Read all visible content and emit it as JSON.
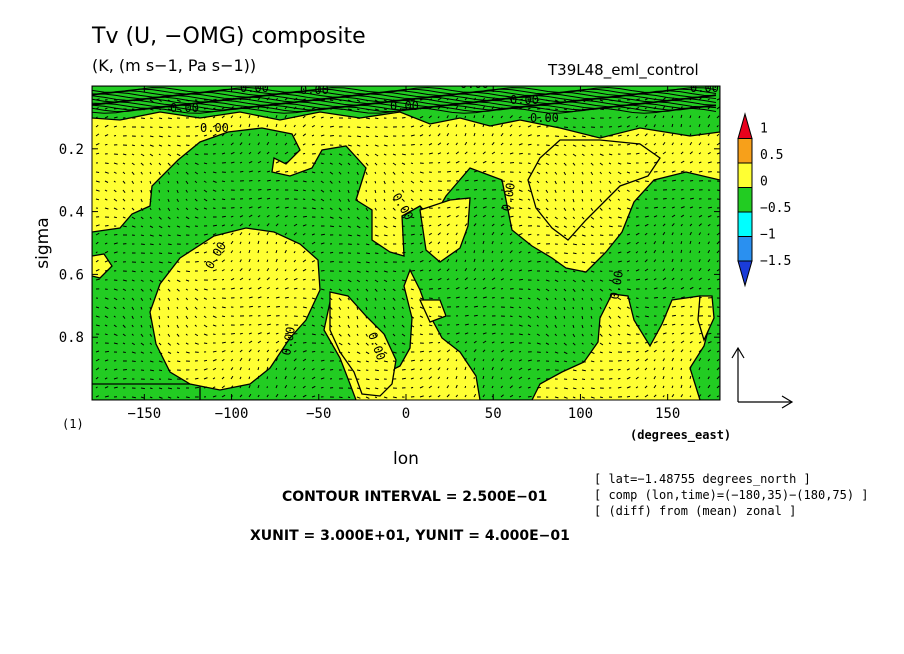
{
  "title": "Tv (U, −OMG) composite",
  "units_line": "(K, (m s−1, Pa s−1))",
  "experiment": "T39L48_eml_control",
  "contour_interval": "CONTOUR INTERVAL = 2.500E−01",
  "vector_units": "XUNIT = 3.000E+01, YUNIT = 4.000E−01",
  "info": [
    "[ lat=−1.48755 degrees_north ]",
    "[ comp (lon,time)=(−180,35)−(180,75) ]",
    "[ (diff) from (mean) zonal ]"
  ],
  "chart_data": {
    "type": "heatmap",
    "xlabel": "lon",
    "xunit": "(degrees_east)",
    "ylabel": "sigma",
    "yunit": "(1)",
    "xlim": [
      -180,
      180
    ],
    "ylim": [
      0,
      1
    ],
    "x_ticks": [
      -150,
      -100,
      -50,
      0,
      50,
      100,
      150
    ],
    "x_tick_labels": [
      "−150",
      "−100",
      "−50",
      "0",
      "50",
      "100",
      "150"
    ],
    "y_ticks": [
      0.2,
      0.4,
      0.6,
      0.8
    ],
    "y_tick_labels": [
      "0.2",
      "0.4",
      "0.6",
      "0.8"
    ],
    "contour_label": "0.00",
    "colorbar": {
      "labels": [
        "1",
        "0.5",
        "0",
        "−0.5",
        "−1",
        "−1.5"
      ],
      "colors": [
        "#e8001c",
        "#f7a01a",
        "#ffff33",
        "#22cc22",
        "#00ffff",
        "#2a90f0",
        "#1a3cd8"
      ]
    },
    "fill_colors": {
      "positive": "#ffff33",
      "negative": "#22cc22"
    }
  }
}
